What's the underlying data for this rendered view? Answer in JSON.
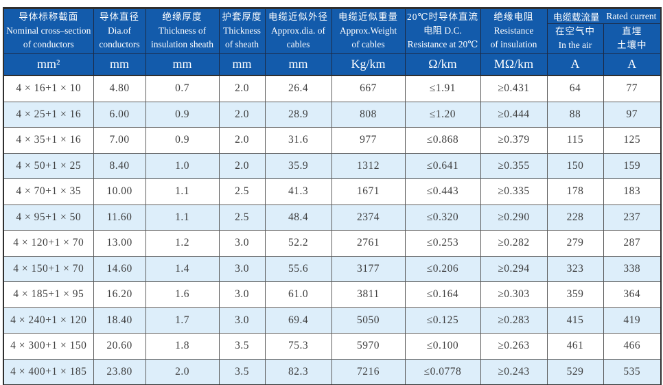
{
  "table": {
    "columns": [
      {
        "zh": "导体标称截面",
        "en1": "Nominal cross–section",
        "en2": "of conductors",
        "unit": "mm²"
      },
      {
        "zh": "导体直径",
        "en1": "Dia.of",
        "en2": "conductors",
        "unit": "mm"
      },
      {
        "zh": "绝缘厚度",
        "en1": "Thickness of",
        "en2": "insulation sheath",
        "unit": "mm"
      },
      {
        "zh": "护套厚度",
        "en1": "Thickness",
        "en2": "of sheath",
        "unit": "mm"
      },
      {
        "zh": "电缆近似外径",
        "en1": "Approx.dia. of",
        "en2": "cables",
        "unit": "mm"
      },
      {
        "zh": "电缆近似重量",
        "en1": "Approx.Weight",
        "en2": "of cables",
        "unit": "Kg/km"
      },
      {
        "zh": "20℃时导体直流",
        "en1": "电阻 D.C.",
        "en2": "Resistance at 20℃",
        "unit": "Ω/km"
      },
      {
        "zh": "绝缘电阻",
        "en1": "Resistance",
        "en2": "of insulation",
        "unit": "MΩ/km"
      }
    ],
    "rated_current_group": {
      "zh": "电缆载流量",
      "en": "Rated current",
      "sub_columns": [
        {
          "line1": "在空气中",
          "line2": "In the air",
          "unit": "A"
        },
        {
          "line1": "直埋",
          "line2": "土壤中",
          "unit": "A"
        }
      ]
    },
    "rows": [
      [
        "4 × 16+1 × 10",
        "4.80",
        "0.7",
        "2.0",
        "26.4",
        "667",
        "≤1.91",
        "≥0.431",
        "64",
        "77"
      ],
      [
        "4 × 25+1 × 16",
        "6.00",
        "0.9",
        "2.0",
        "28.9",
        "808",
        "≤1.20",
        "≥0.444",
        "88",
        "97"
      ],
      [
        "4 × 35+1 × 16",
        "7.00",
        "0.9",
        "2.0",
        "31.6",
        "977",
        "≤0.868",
        "≥0.379",
        "115",
        "125"
      ],
      [
        "4 × 50+1 × 25",
        "8.40",
        "1.0",
        "2.0",
        "35.9",
        "1312",
        "≤0.641",
        "≥0.355",
        "150",
        "159"
      ],
      [
        "4 × 70+1 × 35",
        "10.00",
        "1.1",
        "2.5",
        "41.3",
        "1671",
        "≤0.443",
        "≥0.335",
        "178",
        "183"
      ],
      [
        "4 × 95+1 × 50",
        "11.60",
        "1.1",
        "2.5",
        "48.4",
        "2374",
        "≤0.320",
        "≥0.290",
        "228",
        "237"
      ],
      [
        "4 × 120+1 × 70",
        "13.00",
        "1.2",
        "3.0",
        "52.2",
        "2761",
        "≤0.253",
        "≥0.282",
        "279",
        "287"
      ],
      [
        "4 × 150+1 × 70",
        "14.60",
        "1.4",
        "3.0",
        "55.6",
        "3177",
        "≤0.206",
        "≥0.294",
        "323",
        "338"
      ],
      [
        "4 × 185+1 × 95",
        "16.20",
        "1.6",
        "3.0",
        "61.0",
        "3811",
        "≤0.164",
        "≥0.303",
        "359",
        "364"
      ],
      [
        "4 × 240+1 × 120",
        "18.40",
        "1.7",
        "3.0",
        "69.4",
        "5050",
        "≤0.125",
        "≥0.283",
        "415",
        "419"
      ],
      [
        "4 × 300+1 × 150",
        "20.60",
        "1.8",
        "3.5",
        "75.3",
        "5970",
        "≤0.100",
        "≥0.263",
        "461",
        "466"
      ],
      [
        "4 × 400+1 × 185",
        "23.80",
        "2.0",
        "3.5",
        "82.3",
        "7216",
        "≤0.0778",
        "≥0.243",
        "529",
        "535"
      ]
    ],
    "colors": {
      "header_bg": "#135bab",
      "header_text": "#ffffff",
      "row_alt_bg": "#ddeefa",
      "row_text": "#3d3d3d",
      "grid_line": "#5a5a5a",
      "outer_border": "#2f2f2f"
    }
  }
}
